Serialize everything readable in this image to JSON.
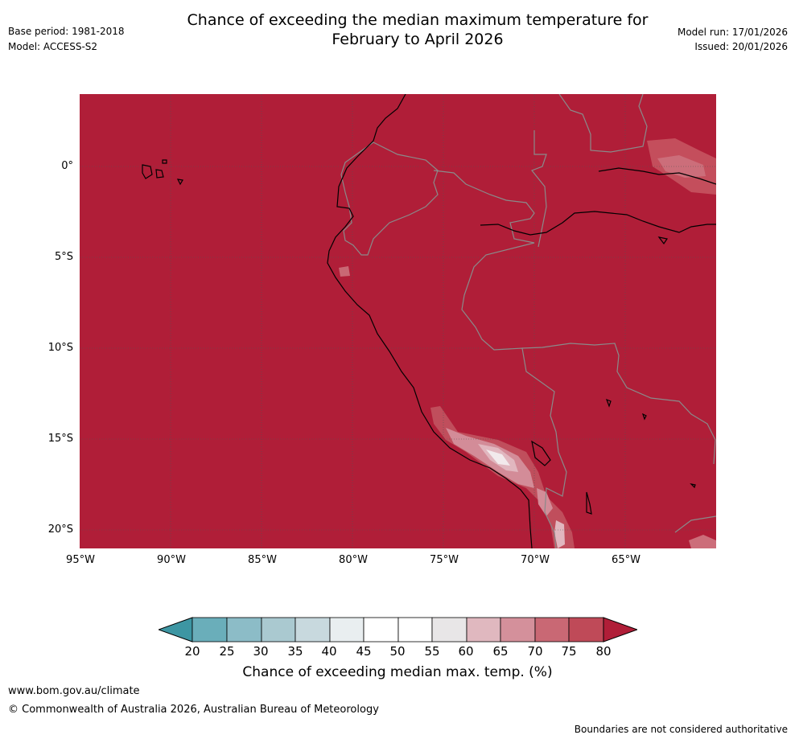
{
  "title": {
    "line1": "Chance of exceeding the median maximum temperature for",
    "line2": "February to April 2026"
  },
  "meta": {
    "base_period": "Base period: 1981-2018",
    "model": "Model: ACCESS-S2",
    "model_run": "Model run: 17/01/2026",
    "issued": "Issued: 20/01/2026"
  },
  "map": {
    "lat_labels": [
      "0°",
      "5°S",
      "10°S",
      "15°S",
      "20°S"
    ],
    "lon_labels": [
      "95°W",
      "90°W",
      "85°W",
      "80°W",
      "75°W",
      "70°W",
      "65°W"
    ],
    "background_color": "#b01e38"
  },
  "colorbar": {
    "ticks": [
      "20",
      "25",
      "30",
      "35",
      "40",
      "45",
      "50",
      "55",
      "60",
      "65",
      "70",
      "75",
      "80"
    ],
    "colors": [
      "#3d96a3",
      "#6aaeba",
      "#8cbcc7",
      "#aac9d0",
      "#c8d9de",
      "#e9eef0",
      "#ffffff",
      "#ffffff",
      "#e8e6e7",
      "#e0b8bf",
      "#d4909b",
      "#c96874",
      "#bf4a58",
      "#b01e38"
    ],
    "label": "Chance of exceeding median max. temp. (%)"
  },
  "footer": {
    "url": "www.bom.gov.au/climate",
    "copyright": "© Commonwealth of Australia 2026, Australian Bureau of Meteorology",
    "disclaimer": "Boundaries are not considered authoritative"
  }
}
